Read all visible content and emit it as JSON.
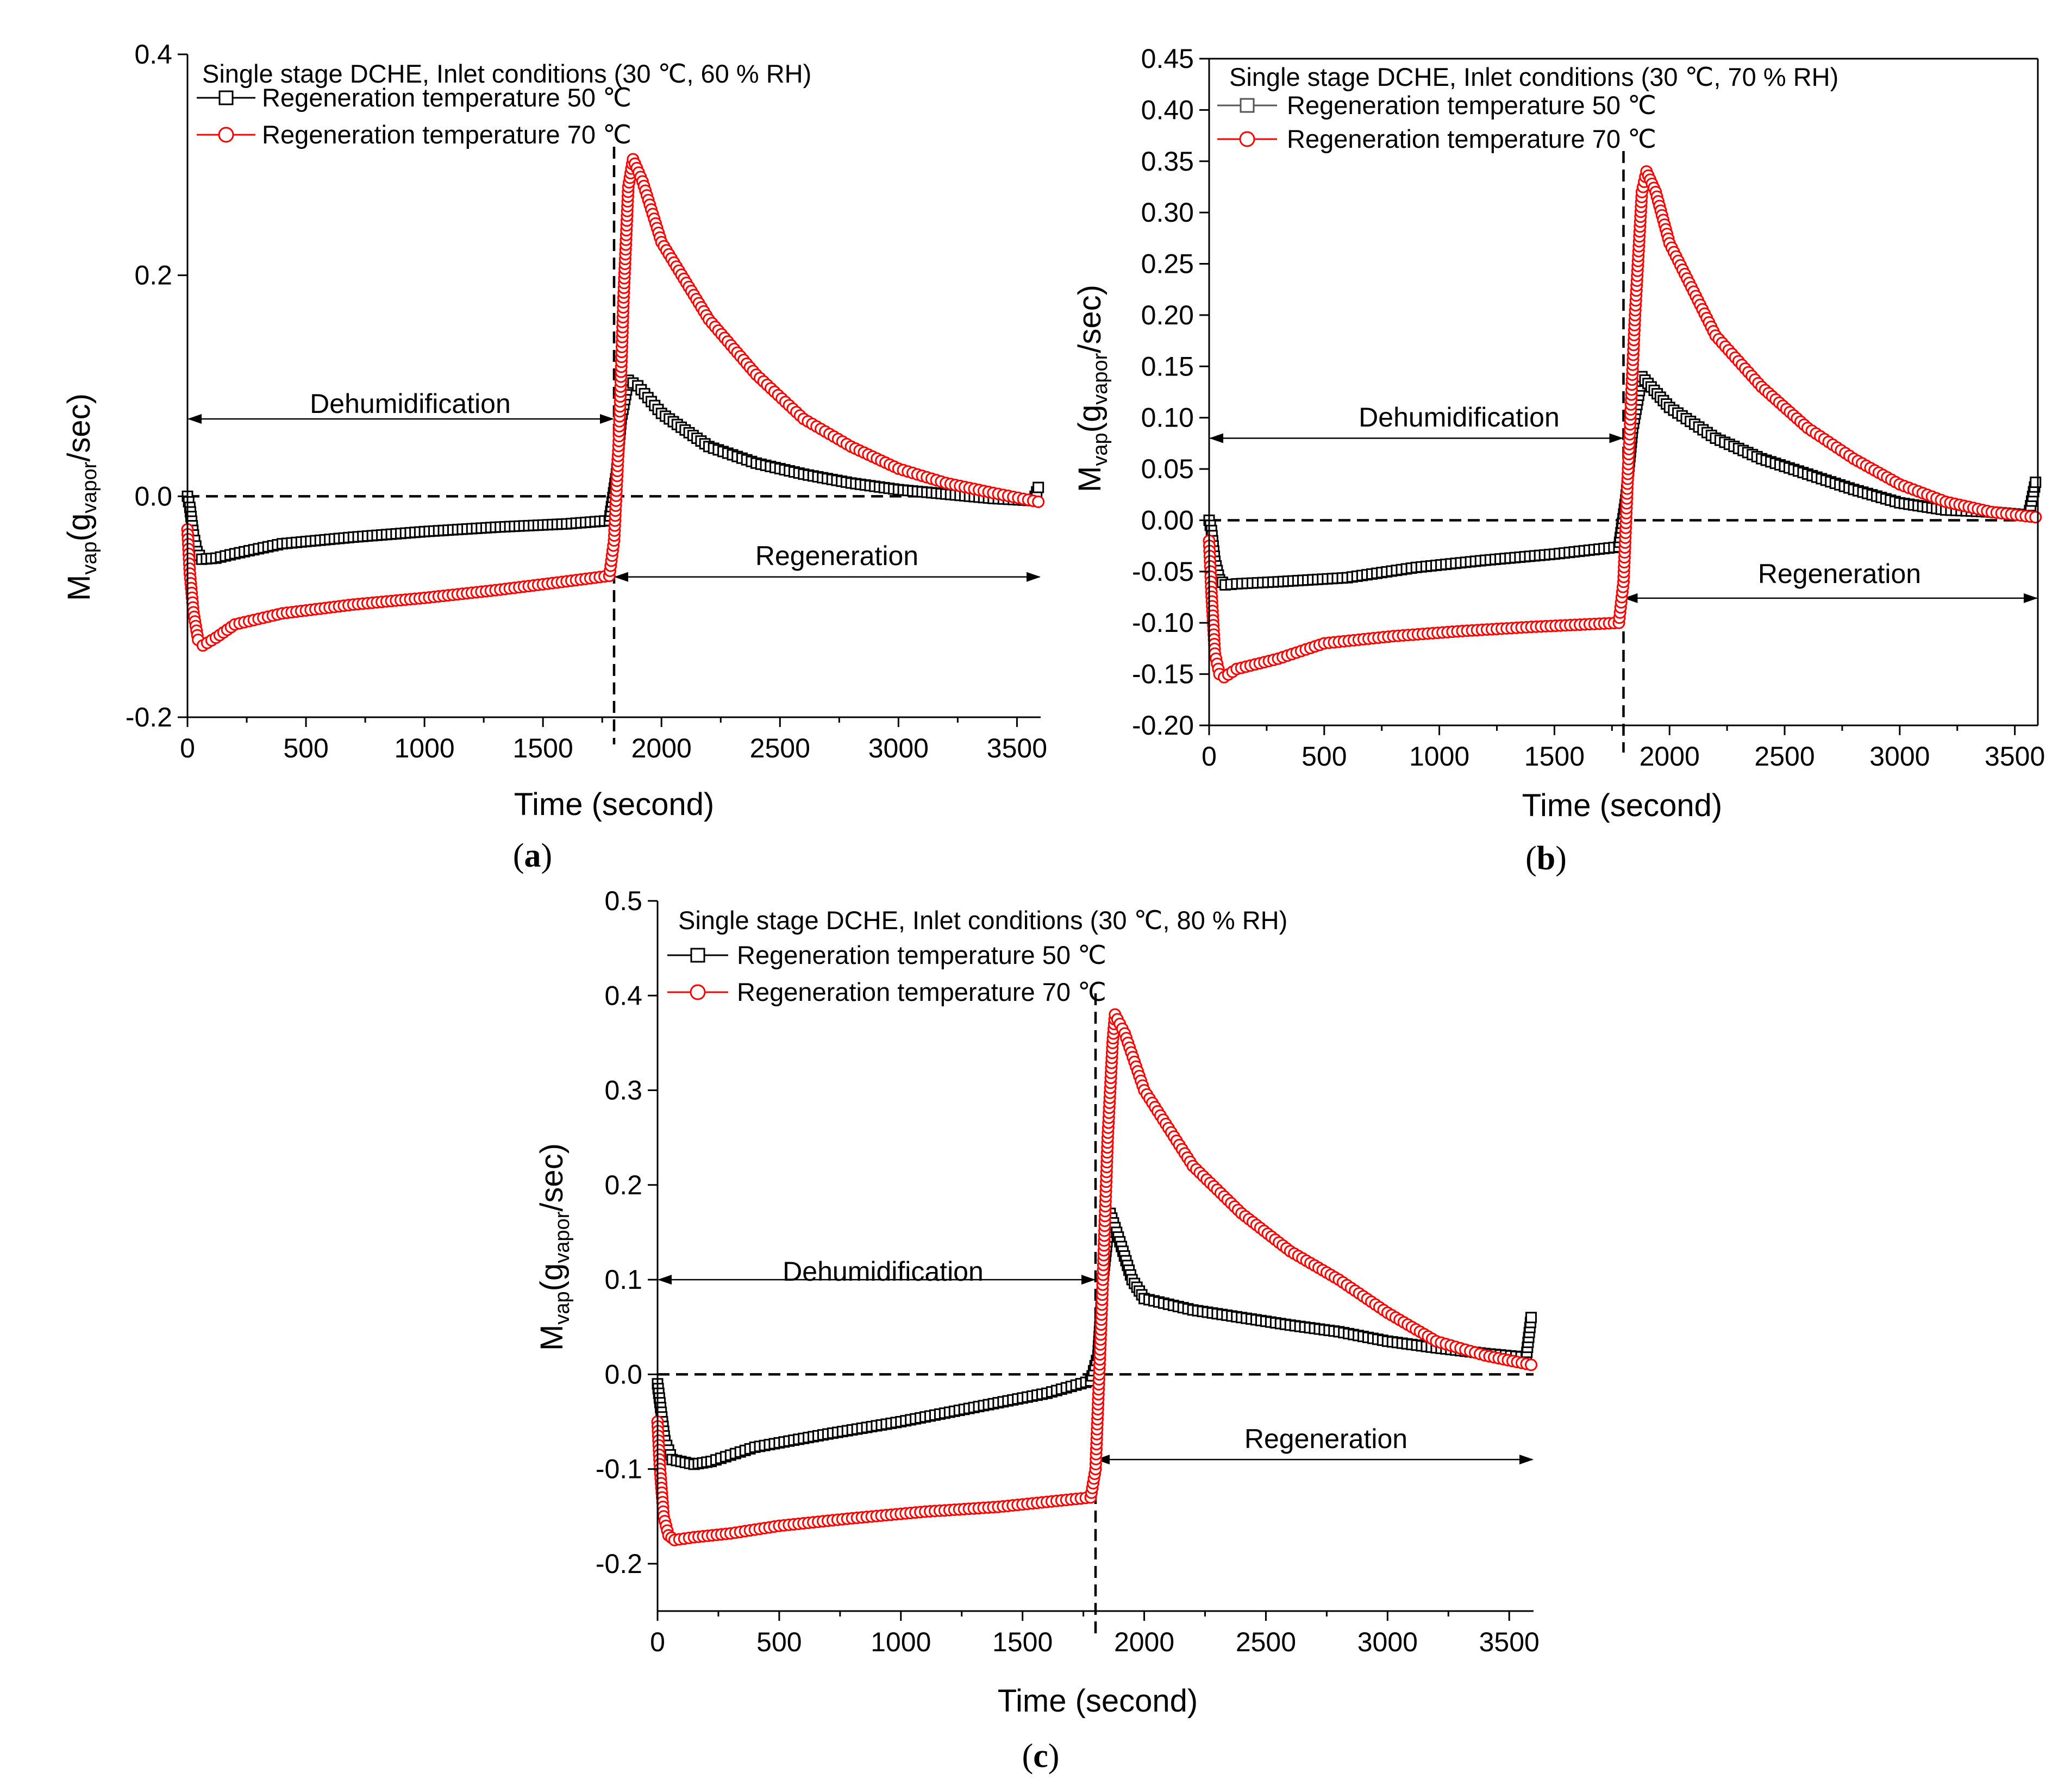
{
  "figure": {
    "panel_labels": [
      {
        "open": "(",
        "letter": "a",
        "close": ")"
      },
      {
        "open": "(",
        "letter": "b",
        "close": ")"
      },
      {
        "open": "(",
        "letter": "c",
        "close": ")"
      }
    ]
  },
  "colors": {
    "series_50": "#000000",
    "series_70": "#ff0000",
    "axes": "#000000"
  },
  "chart_data": [
    {
      "type": "scatter",
      "panel": "a",
      "title": "Single stage DCHE, Inlet conditions (30 ℃, 60 % RH)",
      "xlabel": "Time (second)",
      "ylabel": {
        "main": "M",
        "sub1": "vap",
        "mid": "(g",
        "sub2": "vapor",
        "end": "/sec)"
      },
      "xlim": [
        0,
        3600
      ],
      "ylim": [
        -0.2,
        0.4
      ],
      "xticks": [
        0,
        500,
        1000,
        1500,
        2000,
        2500,
        3000,
        3500
      ],
      "xtick_labels": [
        "0",
        "500",
        "1000",
        "1500",
        "2000",
        "2500",
        "3000",
        "3500"
      ],
      "yticks": [
        -0.2,
        0.0,
        0.2,
        0.4
      ],
      "ytick_labels": [
        "-0.2",
        "0.0",
        "0.2",
        "0.4"
      ],
      "vline_x": 1800,
      "hline_y": 0,
      "annotations": [
        {
          "text": "Dehumidification",
          "from_x": 0,
          "to_x": 1800,
          "y": 0.07
        },
        {
          "text": "Regeneration",
          "from_x": 1800,
          "to_x": 3600,
          "y": -0.073
        }
      ],
      "series": [
        {
          "name": "Regeneration temperature 50 ℃",
          "marker": "square",
          "color": "#000000",
          "points": [
            [
              0,
              0.0
            ],
            [
              10,
              -0.01
            ],
            [
              25,
              -0.035
            ],
            [
              40,
              -0.05
            ],
            [
              60,
              -0.057
            ],
            [
              120,
              -0.056
            ],
            [
              200,
              -0.052
            ],
            [
              400,
              -0.043
            ],
            [
              700,
              -0.037
            ],
            [
              1000,
              -0.032
            ],
            [
              1300,
              -0.028
            ],
            [
              1600,
              -0.025
            ],
            [
              1780,
              -0.022
            ],
            [
              1810,
              0.02
            ],
            [
              1830,
              0.07
            ],
            [
              1860,
              0.105
            ],
            [
              1900,
              0.1
            ],
            [
              2000,
              0.075
            ],
            [
              2200,
              0.045
            ],
            [
              2400,
              0.03
            ],
            [
              2600,
              0.02
            ],
            [
              2800,
              0.012
            ],
            [
              3000,
              0.006
            ],
            [
              3200,
              0.002
            ],
            [
              3400,
              -0.002
            ],
            [
              3570,
              -0.004
            ],
            [
              3590,
              0.008
            ]
          ]
        },
        {
          "name": "Regeneration temperature 70 ℃",
          "marker": "circle",
          "color": "#ff0000",
          "points": [
            [
              0,
              -0.03
            ],
            [
              10,
              -0.07
            ],
            [
              25,
              -0.105
            ],
            [
              45,
              -0.13
            ],
            [
              65,
              -0.135
            ],
            [
              120,
              -0.128
            ],
            [
              200,
              -0.116
            ],
            [
              400,
              -0.106
            ],
            [
              700,
              -0.098
            ],
            [
              1000,
              -0.092
            ],
            [
              1300,
              -0.085
            ],
            [
              1600,
              -0.077
            ],
            [
              1780,
              -0.072
            ],
            [
              1800,
              -0.04
            ],
            [
              1820,
              0.05
            ],
            [
              1840,
              0.18
            ],
            [
              1860,
              0.28
            ],
            [
              1880,
              0.305
            ],
            [
              1920,
              0.285
            ],
            [
              2000,
              0.23
            ],
            [
              2200,
              0.16
            ],
            [
              2400,
              0.11
            ],
            [
              2600,
              0.07
            ],
            [
              2800,
              0.045
            ],
            [
              3000,
              0.025
            ],
            [
              3200,
              0.012
            ],
            [
              3400,
              0.003
            ],
            [
              3590,
              -0.005
            ]
          ]
        }
      ]
    },
    {
      "type": "scatter",
      "panel": "b",
      "title": "Single stage DCHE, Inlet conditions (30 ℃, 70 % RH)",
      "xlabel": "Time (second)",
      "ylabel": {
        "main": "M",
        "sub1": "vap",
        "mid": "(g",
        "sub2": "vapor",
        "end": "/sec)"
      },
      "xlim": [
        0,
        3600
      ],
      "ylim": [
        -0.2,
        0.45
      ],
      "xticks": [
        0,
        500,
        1000,
        1500,
        2000,
        2500,
        3000,
        3500
      ],
      "xtick_labels": [
        "0",
        "500",
        "1000",
        "1500",
        "2000",
        "2500",
        "3000",
        "3500"
      ],
      "yticks": [
        -0.2,
        -0.15,
        -0.1,
        -0.05,
        0.0,
        0.05,
        0.1,
        0.15,
        0.2,
        0.25,
        0.3,
        0.35,
        0.4,
        0.45
      ],
      "ytick_labels": [
        "-0.20",
        "-0.15",
        "-0.10",
        "-0.05",
        "0.00",
        "0.05",
        "0.10",
        "0.15",
        "0.20",
        "0.25",
        "0.30",
        "0.35",
        "0.40",
        "0.45"
      ],
      "vline_x": 1800,
      "hline_y": 0,
      "annotations": [
        {
          "text": "Dehumidification",
          "from_x": 0,
          "to_x": 1800,
          "y": 0.08
        },
        {
          "text": "Regeneration",
          "from_x": 1800,
          "to_x": 3600,
          "y": -0.076
        }
      ],
      "series": [
        {
          "name": "Regeneration temperature 50 ℃",
          "marker": "square",
          "color": "#000000",
          "points": [
            [
              0,
              0.0
            ],
            [
              10,
              -0.01
            ],
            [
              25,
              -0.04
            ],
            [
              45,
              -0.058
            ],
            [
              70,
              -0.063
            ],
            [
              120,
              -0.062
            ],
            [
              300,
              -0.06
            ],
            [
              600,
              -0.056
            ],
            [
              900,
              -0.046
            ],
            [
              1200,
              -0.039
            ],
            [
              1500,
              -0.033
            ],
            [
              1780,
              -0.026
            ],
            [
              1810,
              0.02
            ],
            [
              1840,
              0.09
            ],
            [
              1880,
              0.14
            ],
            [
              1920,
              0.13
            ],
            [
              2000,
              0.11
            ],
            [
              2200,
              0.08
            ],
            [
              2400,
              0.06
            ],
            [
              2600,
              0.045
            ],
            [
              2800,
              0.03
            ],
            [
              3000,
              0.017
            ],
            [
              3200,
              0.01
            ],
            [
              3400,
              0.008
            ],
            [
              3560,
              0.005
            ],
            [
              3590,
              0.037
            ]
          ]
        },
        {
          "name": "Regeneration temperature 70 ℃",
          "marker": "circle",
          "color": "#ff0000",
          "points": [
            [
              0,
              -0.02
            ],
            [
              10,
              -0.07
            ],
            [
              25,
              -0.13
            ],
            [
              45,
              -0.15
            ],
            [
              65,
              -0.153
            ],
            [
              120,
              -0.145
            ],
            [
              300,
              -0.135
            ],
            [
              500,
              -0.12
            ],
            [
              800,
              -0.113
            ],
            [
              1100,
              -0.108
            ],
            [
              1400,
              -0.104
            ],
            [
              1780,
              -0.1
            ],
            [
              1800,
              -0.06
            ],
            [
              1820,
              0.05
            ],
            [
              1850,
              0.2
            ],
            [
              1880,
              0.32
            ],
            [
              1900,
              0.34
            ],
            [
              1940,
              0.32
            ],
            [
              2000,
              0.27
            ],
            [
              2200,
              0.18
            ],
            [
              2400,
              0.13
            ],
            [
              2600,
              0.09
            ],
            [
              2800,
              0.06
            ],
            [
              3000,
              0.035
            ],
            [
              3200,
              0.018
            ],
            [
              3400,
              0.008
            ],
            [
              3590,
              0.003
            ]
          ]
        }
      ]
    },
    {
      "type": "scatter",
      "panel": "c",
      "title": "Single stage DCHE, Inlet conditions (30 ℃, 80 % RH)",
      "xlabel": "Time (second)",
      "ylabel": {
        "main": "M",
        "sub1": "vap",
        "mid": "(g",
        "sub2": "vapor",
        "end": "/sec)"
      },
      "xlim": [
        0,
        3600
      ],
      "ylim": [
        -0.25,
        0.5
      ],
      "xticks": [
        0,
        500,
        1000,
        1500,
        2000,
        2500,
        3000,
        3500
      ],
      "xtick_labels": [
        "0",
        "500",
        "1000",
        "1500",
        "2000",
        "2500",
        "3000",
        "3500"
      ],
      "yticks": [
        -0.2,
        -0.1,
        0.0,
        0.1,
        0.2,
        0.3,
        0.4,
        0.5
      ],
      "ytick_labels": [
        "-0.2",
        "-0.1",
        "0.0",
        "0.1",
        "0.2",
        "0.3",
        "0.4",
        "0.5"
      ],
      "vline_x": 1800,
      "hline_y": 0,
      "annotations": [
        {
          "text": "Dehumidification",
          "from_x": 0,
          "to_x": 1800,
          "y": 0.1
        },
        {
          "text": "Regeneration",
          "from_x": 1800,
          "to_x": 3600,
          "y": -0.09
        }
      ],
      "series": [
        {
          "name": "Regeneration temperature 50 ℃",
          "marker": "square",
          "color": "#000000",
          "points": [
            [
              0,
              -0.01
            ],
            [
              10,
              -0.03
            ],
            [
              30,
              -0.07
            ],
            [
              60,
              -0.09
            ],
            [
              150,
              -0.095
            ],
            [
              220,
              -0.092
            ],
            [
              400,
              -0.077
            ],
            [
              700,
              -0.063
            ],
            [
              1000,
              -0.05
            ],
            [
              1300,
              -0.035
            ],
            [
              1600,
              -0.02
            ],
            [
              1780,
              -0.007
            ],
            [
              1810,
              0.02
            ],
            [
              1830,
              0.1
            ],
            [
              1860,
              0.17
            ],
            [
              1900,
              0.14
            ],
            [
              1950,
              0.1
            ],
            [
              2000,
              0.08
            ],
            [
              2200,
              0.068
            ],
            [
              2400,
              0.06
            ],
            [
              2600,
              0.052
            ],
            [
              2800,
              0.045
            ],
            [
              3000,
              0.035
            ],
            [
              3200,
              0.028
            ],
            [
              3400,
              0.022
            ],
            [
              3570,
              0.018
            ],
            [
              3590,
              0.06
            ]
          ]
        },
        {
          "name": "Regeneration temperature 70 ℃",
          "marker": "circle",
          "color": "#ff0000",
          "points": [
            [
              0,
              -0.05
            ],
            [
              10,
              -0.1
            ],
            [
              25,
              -0.15
            ],
            [
              45,
              -0.17
            ],
            [
              70,
              -0.175
            ],
            [
              150,
              -0.172
            ],
            [
              300,
              -0.168
            ],
            [
              500,
              -0.16
            ],
            [
              800,
              -0.152
            ],
            [
              1100,
              -0.145
            ],
            [
              1400,
              -0.14
            ],
            [
              1780,
              -0.13
            ],
            [
              1800,
              -0.1
            ],
            [
              1815,
              0.0
            ],
            [
              1830,
              0.1
            ],
            [
              1850,
              0.25
            ],
            [
              1870,
              0.35
            ],
            [
              1880,
              0.38
            ],
            [
              1920,
              0.36
            ],
            [
              2000,
              0.3
            ],
            [
              2200,
              0.22
            ],
            [
              2400,
              0.17
            ],
            [
              2600,
              0.13
            ],
            [
              2800,
              0.1
            ],
            [
              3000,
              0.065
            ],
            [
              3200,
              0.035
            ],
            [
              3400,
              0.02
            ],
            [
              3590,
              0.01
            ]
          ]
        }
      ]
    }
  ]
}
